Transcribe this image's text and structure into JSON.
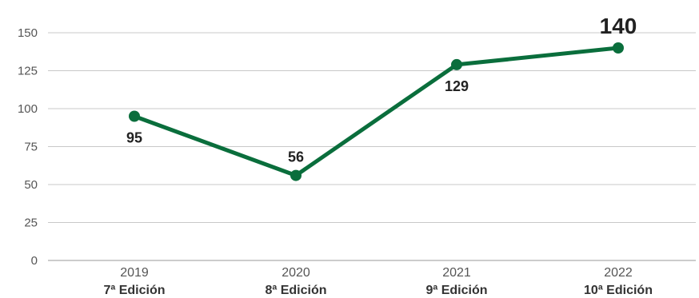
{
  "chart_data": {
    "type": "line",
    "categories": [
      {
        "year": "2019",
        "edition": "7ª Edición"
      },
      {
        "year": "2020",
        "edition": "8ª Edición"
      },
      {
        "year": "2021",
        "edition": "9ª Edición"
      },
      {
        "year": "2022",
        "edition": "10ª Edición"
      }
    ],
    "series": [
      {
        "values": [
          95,
          56,
          129,
          140
        ],
        "labels": [
          "95",
          "56",
          "129",
          "140"
        ],
        "color": "#0a6e3c"
      }
    ],
    "label_positions": [
      "below",
      "above",
      "below",
      "above"
    ],
    "highlight_index": 3,
    "ylim": [
      0,
      150
    ],
    "yticks": [
      0,
      25,
      50,
      75,
      100,
      125,
      150
    ],
    "ytick_labels": [
      "0",
      "25",
      "50",
      "75",
      "100",
      "125",
      "150"
    ],
    "grid": true,
    "grid_color": "#c8c8c8",
    "axis_color": "#999999",
    "title": "",
    "xlabel": "",
    "ylabel": ""
  }
}
